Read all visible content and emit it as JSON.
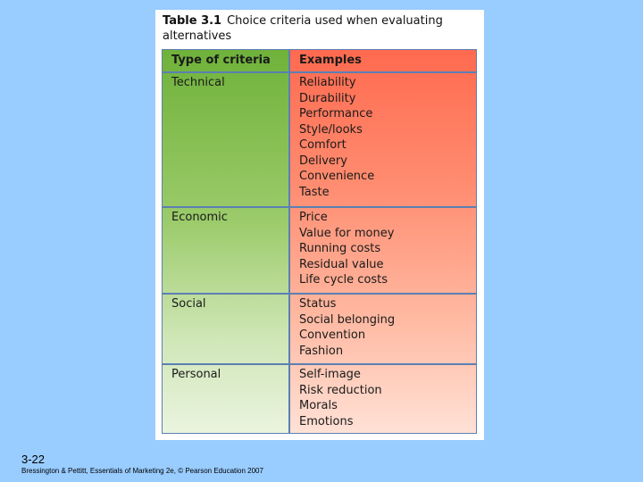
{
  "table": {
    "number": "Table 3.1",
    "caption": "Choice criteria used when evaluating alternatives",
    "headers": [
      "Type of criteria",
      "Examples"
    ],
    "rows": [
      {
        "type": "Technical",
        "examples": [
          "Reliability",
          "Durability",
          "Performance",
          "Style/looks",
          "Comfort",
          "Delivery",
          "Convenience",
          "Taste"
        ]
      },
      {
        "type": "Economic",
        "examples": [
          "Price",
          "Value for money",
          "Running costs",
          "Residual value",
          "Life cycle costs"
        ]
      },
      {
        "type": "Social",
        "examples": [
          "Status",
          "Social belonging",
          "Convention",
          "Fashion"
        ]
      },
      {
        "type": "Personal",
        "examples": [
          "Self-image",
          "Risk reduction",
          "Morals",
          "Emotions"
        ]
      }
    ]
  },
  "slide": {
    "number": "3-22",
    "footer": "Bressington & Pettitt, Essentials of Marketing 2e, © Pearson Education 2007"
  },
  "colors": {
    "background": "#99ccff",
    "left_column": "#6fb23a",
    "right_column": "#ff6a4f",
    "rule": "#5b7fb3"
  }
}
